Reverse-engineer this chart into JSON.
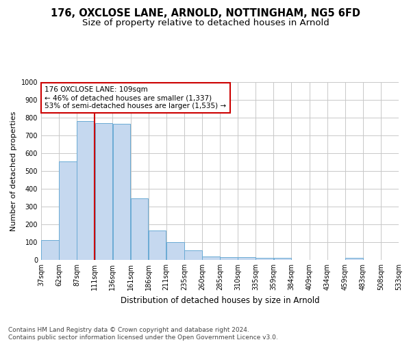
{
  "title1": "176, OXCLOSE LANE, ARNOLD, NOTTINGHAM, NG5 6FD",
  "title2": "Size of property relative to detached houses in Arnold",
  "xlabel": "Distribution of detached houses by size in Arnold",
  "ylabel": "Number of detached properties",
  "bar_color": "#c5d8ef",
  "bar_edge_color": "#6aaad4",
  "vline_color": "#cc0000",
  "vline_x_bin": 2,
  "annotation_text": "176 OXCLOSE LANE: 109sqm\n← 46% of detached houses are smaller (1,337)\n53% of semi-detached houses are larger (1,535) →",
  "annotation_box_color": "#ffffff",
  "annotation_box_edge": "#cc0000",
  "footer": "Contains HM Land Registry data © Crown copyright and database right 2024.\nContains public sector information licensed under the Open Government Licence v3.0.",
  "bin_edges": [
    37,
    62,
    87,
    111,
    136,
    161,
    186,
    211,
    235,
    260,
    285,
    310,
    335,
    359,
    384,
    409,
    434,
    459,
    483,
    508,
    533
  ],
  "bin_labels": [
    "37sqm",
    "62sqm",
    "87sqm",
    "111sqm",
    "136sqm",
    "161sqm",
    "186sqm",
    "211sqm",
    "235sqm",
    "260sqm",
    "285sqm",
    "310sqm",
    "335sqm",
    "359sqm",
    "384sqm",
    "409sqm",
    "434sqm",
    "459sqm",
    "483sqm",
    "508sqm",
    "533sqm"
  ],
  "bar_heights": [
    110,
    555,
    780,
    770,
    765,
    345,
    165,
    100,
    55,
    20,
    15,
    15,
    10,
    10,
    0,
    0,
    0,
    10,
    0,
    0
  ],
  "ylim": [
    0,
    1000
  ],
  "yticks": [
    0,
    100,
    200,
    300,
    400,
    500,
    600,
    700,
    800,
    900,
    1000
  ],
  "background_color": "#ffffff",
  "grid_color": "#c8c8c8",
  "title1_fontsize": 10.5,
  "title2_fontsize": 9.5,
  "xlabel_fontsize": 8.5,
  "ylabel_fontsize": 8,
  "tick_fontsize": 7,
  "annotation_fontsize": 7.5,
  "footer_fontsize": 6.5
}
